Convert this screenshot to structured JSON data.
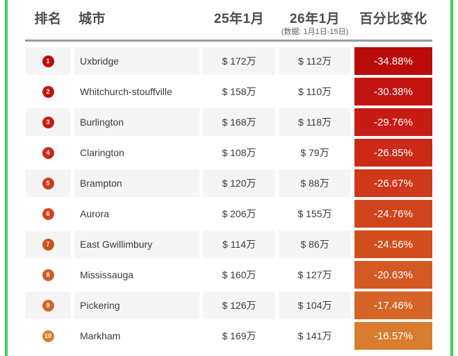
{
  "colors": {
    "frame_border": "#3fd05f",
    "header_text": "#4b4b4b",
    "separator": "#9b9b9b",
    "row_alt_bg": "#f5f5f5",
    "body_text": "#3a3a3a",
    "pct_text": "#ffffff"
  },
  "table": {
    "headers": {
      "rank": "排名",
      "city": "城市",
      "col_2025": "25年1月",
      "col_2026": "26年1月",
      "col_2026_note": "(数据: 1月1日-15日)",
      "pct": "百分比变化"
    },
    "rows": [
      {
        "rank": "1",
        "city": "Uxbridge",
        "p2025": "$ 172万",
        "p2026": "$ 112万",
        "pct": "-34.88%",
        "color": "#ba0c0a"
      },
      {
        "rank": "2",
        "city": "Whitchurch-stouffville",
        "p2025": "$ 158万",
        "p2026": "$ 110万",
        "pct": "-30.38%",
        "color": "#c11410"
      },
      {
        "rank": "3",
        "city": "Burlington",
        "p2025": "$ 168万",
        "p2026": "$ 118万",
        "pct": "-29.76%",
        "color": "#c61c13"
      },
      {
        "rank": "4",
        "city": "Clarington",
        "p2025": "$ 108万",
        "p2026": "$ 79万",
        "pct": "-26.85%",
        "color": "#cb2b16"
      },
      {
        "rank": "5",
        "city": "Brampton",
        "p2025": "$ 120万",
        "p2026": "$ 88万",
        "pct": "-26.67%",
        "color": "#ce3919"
      },
      {
        "rank": "6",
        "city": "Aurora",
        "p2025": "$ 206万",
        "p2026": "$ 155万",
        "pct": "-24.76%",
        "color": "#d0441c"
      },
      {
        "rank": "7",
        "city": "East Gwillimbury",
        "p2025": "$ 114万",
        "p2026": "$ 86万",
        "pct": "-24.56%",
        "color": "#d14e1f"
      },
      {
        "rank": "8",
        "city": "Mississauga",
        "p2025": "$ 160万",
        "p2026": "$ 127万",
        "pct": "-20.63%",
        "color": "#d45923"
      },
      {
        "rank": "9",
        "city": "Pickering",
        "p2025": "$ 126万",
        "p2026": "$ 104万",
        "pct": "-17.46%",
        "color": "#d56427"
      },
      {
        "rank": "10",
        "city": "Markham",
        "p2025": "$ 169万",
        "p2026": "$ 141万",
        "pct": "-16.57%",
        "color": "#d87d2f"
      }
    ]
  },
  "chart_data": {
    "type": "table",
    "title": "",
    "columns": [
      "排名",
      "城市",
      "25年1月",
      "26年1月 (数据: 1月1日-15日)",
      "百分比变化"
    ],
    "unit": "万 (CAD $10,000)",
    "rows": [
      {
        "rank": 1,
        "city": "Uxbridge",
        "jan_2025": 172,
        "jan_2026": 112,
        "pct_change": -34.88
      },
      {
        "rank": 2,
        "city": "Whitchurch-stouffville",
        "jan_2025": 158,
        "jan_2026": 110,
        "pct_change": -30.38
      },
      {
        "rank": 3,
        "city": "Burlington",
        "jan_2025": 168,
        "jan_2026": 118,
        "pct_change": -29.76
      },
      {
        "rank": 4,
        "city": "Clarington",
        "jan_2025": 108,
        "jan_2026": 79,
        "pct_change": -26.85
      },
      {
        "rank": 5,
        "city": "Brampton",
        "jan_2025": 120,
        "jan_2026": 88,
        "pct_change": -26.67
      },
      {
        "rank": 6,
        "city": "Aurora",
        "jan_2025": 206,
        "jan_2026": 155,
        "pct_change": -24.76
      },
      {
        "rank": 7,
        "city": "East Gwillimbury",
        "jan_2025": 114,
        "jan_2026": 86,
        "pct_change": -24.56
      },
      {
        "rank": 8,
        "city": "Mississauga",
        "jan_2025": 160,
        "jan_2026": 127,
        "pct_change": -20.63
      },
      {
        "rank": 9,
        "city": "Pickering",
        "jan_2025": 126,
        "jan_2026": 104,
        "pct_change": -17.46
      },
      {
        "rank": 10,
        "city": "Markham",
        "jan_2025": 169,
        "jan_2026": 141,
        "pct_change": -16.57
      }
    ]
  }
}
